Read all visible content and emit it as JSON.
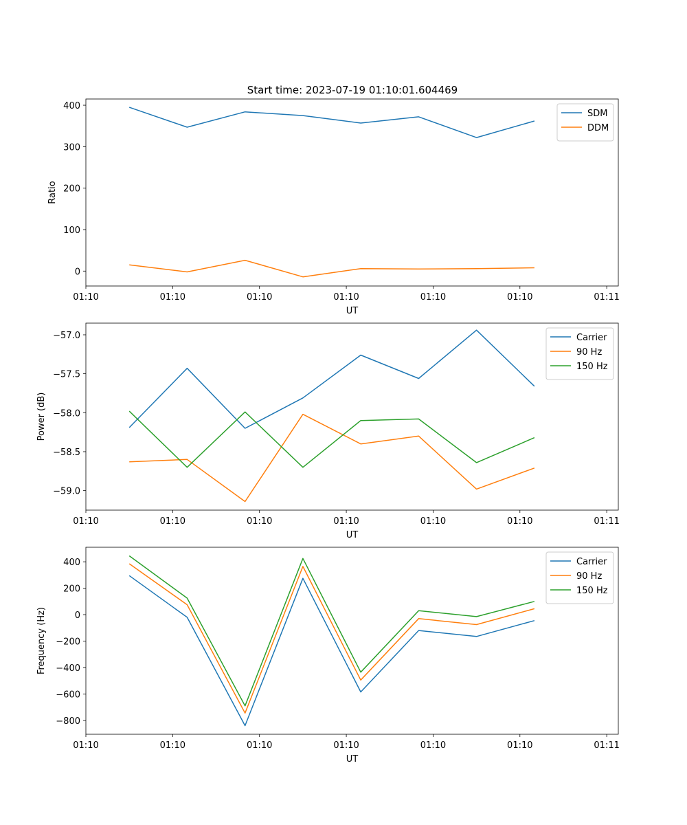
{
  "figure": {
    "title": "Start time: 2023-07-19 01:10:01.604469"
  },
  "chart_data": [
    {
      "type": "line",
      "xlabel": "UT",
      "ylabel": "Ratio",
      "xlim": [
        0,
        9.2
      ],
      "x": [
        0.75,
        1.75,
        2.75,
        3.75,
        4.75,
        5.75,
        6.75,
        7.75
      ],
      "x_ticks": [
        0,
        1.5,
        3,
        4.5,
        6,
        7.5,
        9
      ],
      "x_tick_labels": [
        "01:10",
        "01:10",
        "01:10",
        "01:10",
        "01:10",
        "01:10",
        "01:11"
      ],
      "ylim": [
        -36,
        415
      ],
      "y_ticks": [
        0,
        100,
        200,
        300,
        400
      ],
      "y_tick_labels": [
        "0",
        "100",
        "200",
        "300",
        "400"
      ],
      "legend_position": "top-right",
      "series": [
        {
          "name": "SDM",
          "color": "#1f77b4",
          "values": [
            395,
            347,
            384,
            375,
            357,
            372,
            322,
            362
          ]
        },
        {
          "name": "DDM",
          "color": "#ff7f0e",
          "values": [
            15,
            -2,
            26,
            -14,
            6,
            5,
            6,
            8
          ]
        }
      ]
    },
    {
      "type": "line",
      "xlabel": "UT",
      "ylabel": "Power (dB)",
      "xlim": [
        0,
        9.2
      ],
      "x": [
        0.75,
        1.75,
        2.75,
        3.75,
        4.75,
        5.75,
        6.75,
        7.75
      ],
      "x_ticks": [
        0,
        1.5,
        3,
        4.5,
        6,
        7.5,
        9
      ],
      "x_tick_labels": [
        "01:10",
        "01:10",
        "01:10",
        "01:10",
        "01:10",
        "01:10",
        "01:11"
      ],
      "ylim": [
        -59.25,
        -56.85
      ],
      "y_ticks": [
        -59.0,
        -58.5,
        -58.0,
        -57.5,
        -57.0
      ],
      "y_tick_labels": [
        "−59.0",
        "−58.5",
        "−58.0",
        "−57.5",
        "−57.0"
      ],
      "legend_position": "top-right",
      "series": [
        {
          "name": "Carrier",
          "color": "#1f77b4",
          "values": [
            -58.19,
            -57.43,
            -58.2,
            -57.81,
            -57.26,
            -57.56,
            -56.94,
            -57.66
          ]
        },
        {
          "name": "90 Hz",
          "color": "#ff7f0e",
          "values": [
            -58.63,
            -58.6,
            -59.14,
            -58.02,
            -58.4,
            -58.3,
            -58.98,
            -58.71
          ]
        },
        {
          "name": "150 Hz",
          "color": "#2ca02c",
          "values": [
            -57.98,
            -58.7,
            -57.99,
            -58.7,
            -58.1,
            -58.08,
            -58.64,
            -58.32
          ]
        }
      ]
    },
    {
      "type": "line",
      "xlabel": "UT",
      "ylabel": "Frequency (Hz)",
      "xlim": [
        0,
        9.2
      ],
      "x": [
        0.75,
        1.75,
        2.75,
        3.75,
        4.75,
        5.75,
        6.75,
        7.75
      ],
      "x_ticks": [
        0,
        1.5,
        3,
        4.5,
        6,
        7.5,
        9
      ],
      "x_tick_labels": [
        "01:10",
        "01:10",
        "01:10",
        "01:10",
        "01:10",
        "01:10",
        "01:11"
      ],
      "ylim": [
        -905,
        510
      ],
      "y_ticks": [
        -800,
        -600,
        -400,
        -200,
        0,
        200,
        400
      ],
      "y_tick_labels": [
        "−800",
        "−600",
        "−400",
        "−200",
        "0",
        "200",
        "400"
      ],
      "legend_position": "top-right",
      "series": [
        {
          "name": "Carrier",
          "color": "#1f77b4",
          "values": [
            295,
            -20,
            -840,
            275,
            -585,
            -120,
            -165,
            -45
          ]
        },
        {
          "name": "90 Hz",
          "color": "#ff7f0e",
          "values": [
            385,
            75,
            -745,
            365,
            -495,
            -30,
            -75,
            45
          ]
        },
        {
          "name": "150 Hz",
          "color": "#2ca02c",
          "values": [
            445,
            125,
            -690,
            425,
            -435,
            30,
            -15,
            100
          ]
        }
      ]
    }
  ]
}
